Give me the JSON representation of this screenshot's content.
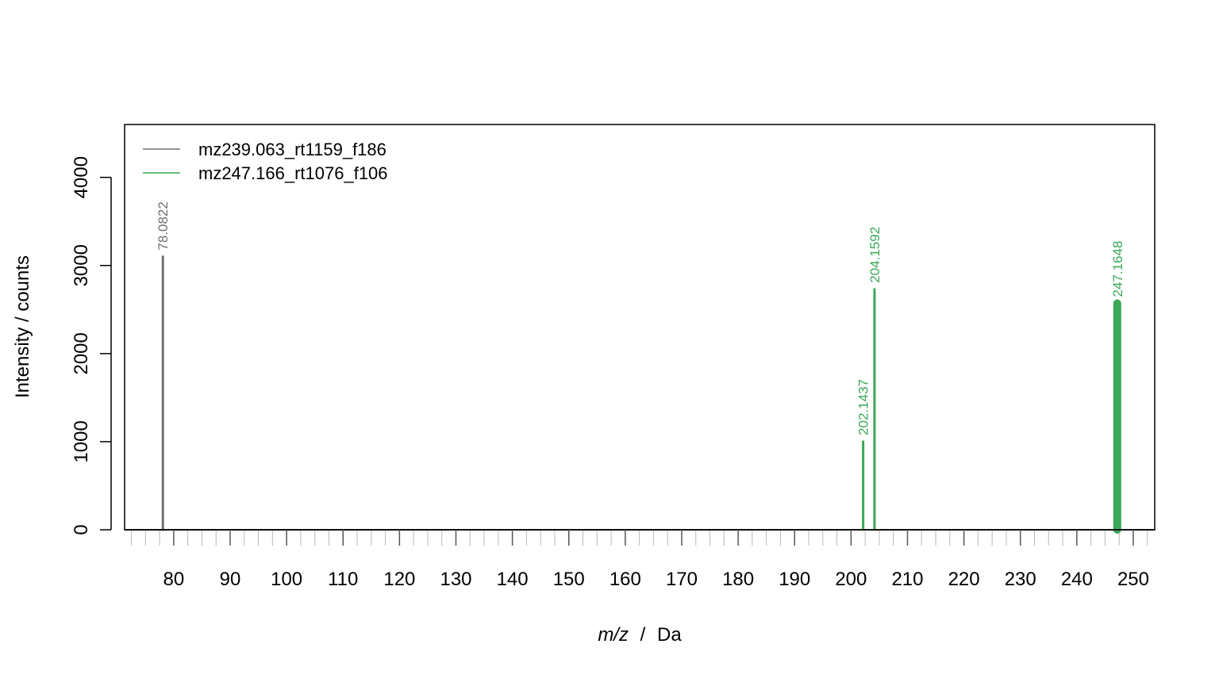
{
  "chart_data": {
    "type": "spectrum",
    "xlabel_italic": "m/z",
    "xlabel_sep": "/",
    "xlabel_unit": "Da",
    "ylabel": "Intensity / counts",
    "xlim": [
      71.3,
      253.8
    ],
    "ylim": [
      0,
      4600
    ],
    "x_ticks": [
      80,
      90,
      100,
      110,
      120,
      130,
      140,
      150,
      160,
      170,
      180,
      190,
      200,
      210,
      220,
      230,
      240,
      250
    ],
    "y_ticks": [
      0,
      1000,
      2000,
      3000,
      4000
    ],
    "minor_x_step": 2.5,
    "legend_position": "top-left",
    "series": [
      {
        "name": "mz239.063_rt1159_f186",
        "color": "#707070",
        "peaks": [
          {
            "mz": 78.0822,
            "intensity": 3100,
            "label": "78.0822"
          }
        ]
      },
      {
        "name": "mz247.166_rt1076_f106",
        "color": "#3aa857",
        "peaks": [
          {
            "mz": 202.1437,
            "intensity": 1000,
            "label": "202.1437"
          },
          {
            "mz": 204.1592,
            "intensity": 2730,
            "label": "204.1592"
          },
          {
            "mz": 247.1648,
            "intensity": 2570,
            "label": "247.1648",
            "width": 10
          }
        ]
      }
    ]
  }
}
